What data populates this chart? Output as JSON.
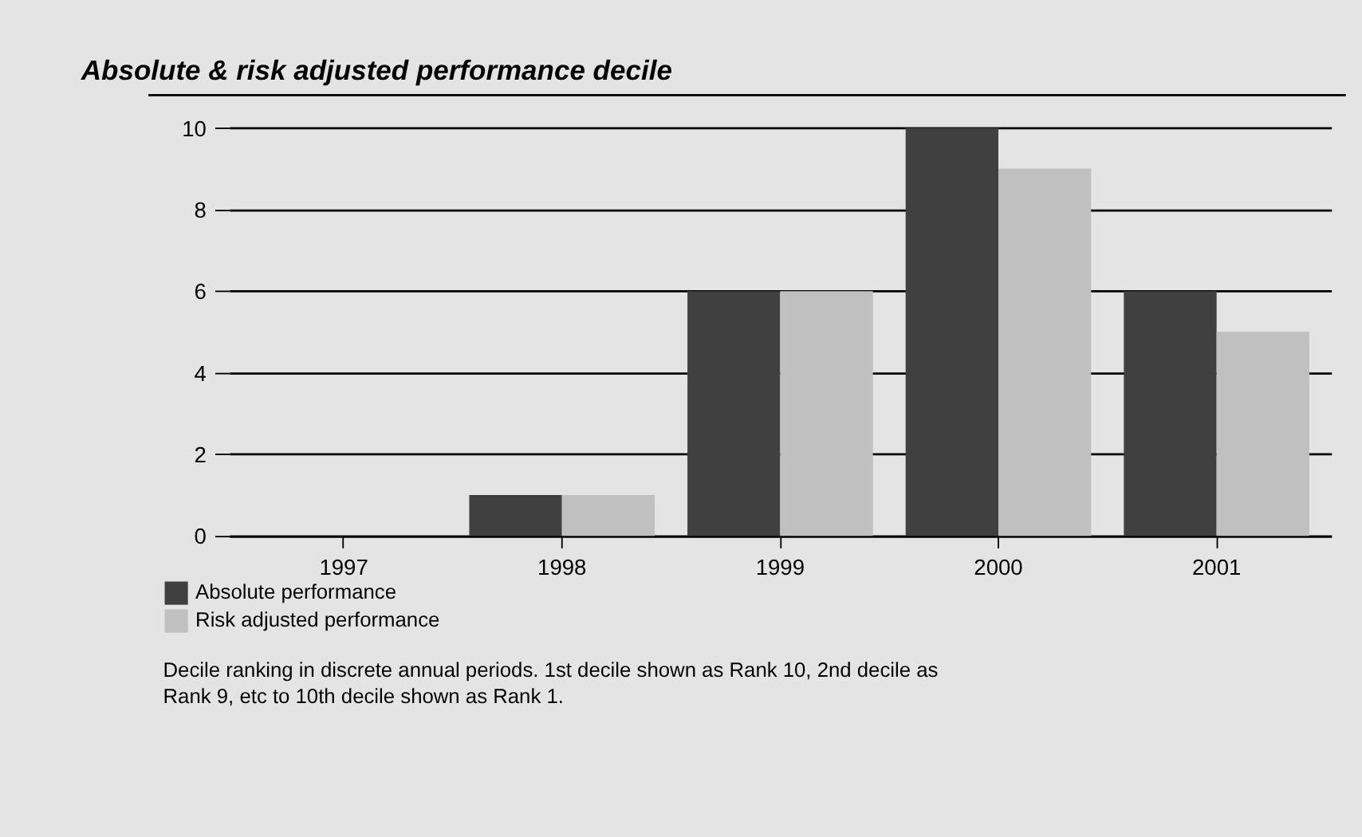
{
  "chart_data": {
    "type": "bar",
    "title": "Absolute & risk adjusted performance decile",
    "categories": [
      "1997",
      "1998",
      "1999",
      "2000",
      "2001"
    ],
    "series": [
      {
        "name": "Absolute performance",
        "color": "#404040",
        "values": [
          0,
          1,
          6,
          10,
          6
        ]
      },
      {
        "name": "Risk adjusted performance",
        "color": "#c0c0c0",
        "values": [
          0,
          1,
          6,
          9,
          5
        ]
      }
    ],
    "ylim": [
      0,
      10.8
    ],
    "yticks": [
      0,
      2,
      4,
      6,
      8,
      10
    ],
    "grid": "y",
    "legend": "bottom left",
    "annotations": [
      "Decile ranking in discrete annual periods. 1st decile shown as Rank 10, 2nd decile as Rank 9, etc to 10th decile shown as Rank 1."
    ]
  }
}
